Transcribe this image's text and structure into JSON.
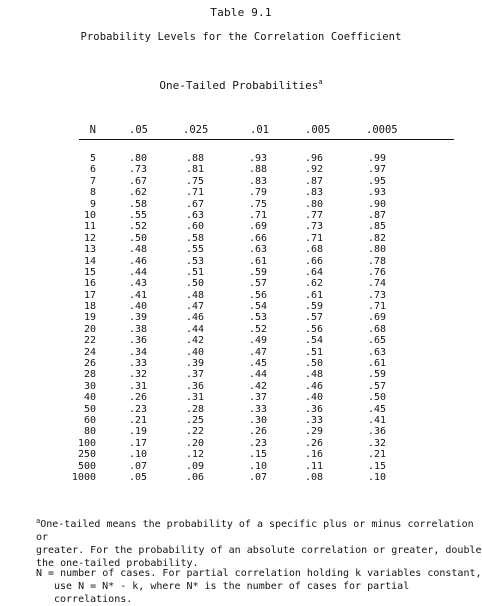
{
  "title": "Table 9.1",
  "subtitle": "Probability Levels for the Correlation Coefficient",
  "tail_heading": "One-Tailed Probabilities",
  "tail_heading_mark": "a",
  "columns": [
    "N",
    ".05",
    ".025",
    ".01",
    ".005",
    ".0005"
  ],
  "rows": [
    [
      "5",
      ".80",
      ".88",
      ".93",
      ".96",
      ".99"
    ],
    [
      "6",
      ".73",
      ".81",
      ".88",
      ".92",
      ".97"
    ],
    [
      "7",
      ".67",
      ".75",
      ".83",
      ".87",
      ".95"
    ],
    [
      "8",
      ".62",
      ".71",
      ".79",
      ".83",
      ".93"
    ],
    [
      "9",
      ".58",
      ".67",
      ".75",
      ".80",
      ".90"
    ],
    [
      "10",
      ".55",
      ".63",
      ".71",
      ".77",
      ".87"
    ],
    [
      "11",
      ".52",
      ".60",
      ".69",
      ".73",
      ".85"
    ],
    [
      "12",
      ".50",
      ".58",
      ".66",
      ".71",
      ".82"
    ],
    [
      "13",
      ".48",
      ".55",
      ".63",
      ".68",
      ".80"
    ],
    [
      "14",
      ".46",
      ".53",
      ".61",
      ".66",
      ".78"
    ],
    [
      "15",
      ".44",
      ".51",
      ".59",
      ".64",
      ".76"
    ],
    [
      "16",
      ".43",
      ".50",
      ".57",
      ".62",
      ".74"
    ],
    [
      "17",
      ".41",
      ".48",
      ".56",
      ".61",
      ".73"
    ],
    [
      "18",
      ".40",
      ".47",
      ".54",
      ".59",
      ".71"
    ],
    [
      "19",
      ".39",
      ".46",
      ".53",
      ".57",
      ".69"
    ],
    [
      "20",
      ".38",
      ".44",
      ".52",
      ".56",
      ".68"
    ],
    [
      "22",
      ".36",
      ".42",
      ".49",
      ".54",
      ".65"
    ],
    [
      "24",
      ".34",
      ".40",
      ".47",
      ".51",
      ".63"
    ],
    [
      "26",
      ".33",
      ".39",
      ".45",
      ".50",
      ".61"
    ],
    [
      "28",
      ".32",
      ".37",
      ".44",
      ".48",
      ".59"
    ],
    [
      "30",
      ".31",
      ".36",
      ".42",
      ".46",
      ".57"
    ],
    [
      "40",
      ".26",
      ".31",
      ".37",
      ".40",
      ".50"
    ],
    [
      "50",
      ".23",
      ".28",
      ".33",
      ".36",
      ".45"
    ],
    [
      "60",
      ".21",
      ".25",
      ".30",
      ".33",
      ".41"
    ],
    [
      "80",
      ".19",
      ".22",
      ".26",
      ".29",
      ".36"
    ],
    [
      "100",
      ".17",
      ".20",
      ".23",
      ".26",
      ".32"
    ],
    [
      "250",
      ".10",
      ".12",
      ".15",
      ".16",
      ".21"
    ],
    [
      "500",
      ".07",
      ".09",
      ".10",
      ".11",
      ".15"
    ],
    [
      "1000",
      ".05",
      ".06",
      ".07",
      ".08",
      ".10"
    ]
  ],
  "footnote_mark": "a",
  "footnote_line1": "One-tailed means the probability of a specific plus or minus correlation or",
  "footnote_line2": "greater.  For the probability of an absolute correlation or greater, double",
  "footnote_line3": "the one-tailed probability.",
  "note_line1": "N = number of cases.  For partial correlation holding k variables constant,",
  "note_line2": "use N = N* - k, where N* is the number of cases for partial correlations."
}
